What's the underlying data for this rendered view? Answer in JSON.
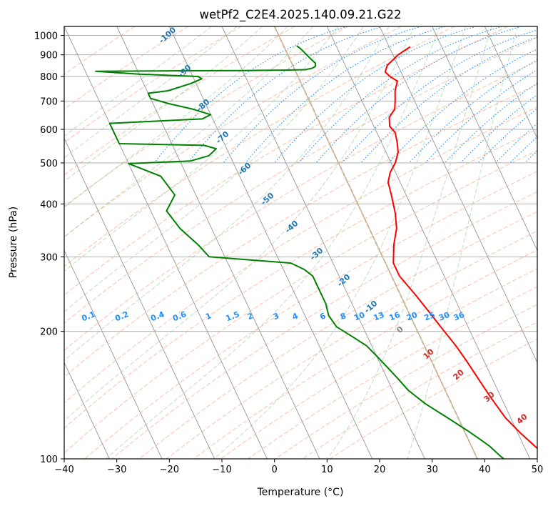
{
  "chart_data": {
    "type": "skew-t",
    "title": "wetPf2_C2E4.2025.140.09.21.G22",
    "xlabel": "Temperature (°C)",
    "ylabel": "Pressure (hPa)",
    "xlim": [
      -40,
      50
    ],
    "ylim": [
      1050,
      100
    ],
    "y_scale": "log",
    "x_ticks": [
      -40,
      -30,
      -20,
      -10,
      0,
      10,
      20,
      30,
      40,
      50
    ],
    "x_tick_labels": [
      "−40",
      "−30",
      "−20",
      "−10",
      "0",
      "10",
      "20",
      "30",
      "40",
      "50"
    ],
    "y_ticks": [
      100,
      200,
      300,
      400,
      500,
      600,
      700,
      800,
      900,
      1000
    ],
    "grid": true,
    "colors": {
      "temperature": "#ff0000",
      "dewpoint": "#008000",
      "isotherms": "#a0a0a0",
      "dry_adiabats": "#ff7f50",
      "moist_adiabats": "#7fbf7f",
      "mixing_ratio": "#1f8fff",
      "isotherm_labels": "#1f77b4",
      "dry_adiabat_labels": "#d62728",
      "zero_isotherm": "#d2b48c"
    },
    "series": [
      {
        "name": "Temperature",
        "points": [
          [
            24,
            940
          ],
          [
            21,
            900
          ],
          [
            18,
            850
          ],
          [
            17,
            820
          ],
          [
            17.5,
            800
          ],
          [
            18.5,
            780
          ],
          [
            17.2,
            740
          ],
          [
            16.3,
            700
          ],
          [
            15.5,
            670
          ],
          [
            13.7,
            640
          ],
          [
            13,
            610
          ],
          [
            13.5,
            590
          ],
          [
            13,
            560
          ],
          [
            12.3,
            530
          ],
          [
            10.8,
            500
          ],
          [
            9,
            475
          ],
          [
            7.7,
            450
          ],
          [
            7.2,
            420
          ],
          [
            6.3,
            380
          ],
          [
            5.2,
            350
          ],
          [
            3.2,
            320
          ],
          [
            1.5,
            290
          ],
          [
            1.5,
            270
          ],
          [
            2.8,
            245
          ],
          [
            3.8,
            225
          ],
          [
            4.8,
            205
          ],
          [
            6,
            185
          ],
          [
            6.7,
            170
          ],
          [
            7.3,
            155
          ],
          [
            8,
            140
          ],
          [
            9,
            125
          ],
          [
            10.5,
            115
          ],
          [
            12.5,
            105
          ],
          [
            14.5,
            100
          ]
        ]
      },
      {
        "name": "Dewpoint",
        "points": [
          [
            2.5,
            945
          ],
          [
            3,
            930
          ],
          [
            3.5,
            905
          ],
          [
            4,
            880
          ],
          [
            4.5,
            860
          ],
          [
            4.2,
            845
          ],
          [
            3.5,
            837
          ],
          [
            2,
            830
          ],
          [
            -2,
            828
          ],
          [
            -10,
            826
          ],
          [
            -23,
            825
          ],
          [
            -38,
            823
          ],
          [
            -30,
            810
          ],
          [
            -19,
            800
          ],
          [
            -18.5,
            790
          ],
          [
            -21,
            770
          ],
          [
            -26,
            740
          ],
          [
            -30,
            730
          ],
          [
            -30,
            710
          ],
          [
            -27,
            690
          ],
          [
            -23,
            670
          ],
          [
            -20,
            650
          ],
          [
            -22,
            635
          ],
          [
            -40,
            620
          ],
          [
            -40,
            555
          ],
          [
            -24,
            550
          ],
          [
            -22,
            540
          ],
          [
            -24,
            520
          ],
          [
            -28,
            505
          ],
          [
            -40,
            498
          ],
          [
            -35,
            465
          ],
          [
            -34,
            420
          ],
          [
            -37,
            385
          ],
          [
            -36,
            350
          ],
          [
            -34,
            320
          ],
          [
            -33,
            300
          ],
          [
            -18,
            290
          ],
          [
            -16,
            280
          ],
          [
            -15,
            270
          ],
          [
            -15,
            250
          ],
          [
            -15,
            232
          ],
          [
            -15.5,
            218
          ],
          [
            -15,
            205
          ],
          [
            -13,
            195
          ],
          [
            -11,
            185
          ],
          [
            -10,
            175
          ],
          [
            -9,
            165
          ],
          [
            -8,
            155
          ],
          [
            -7,
            145
          ],
          [
            -5,
            135
          ],
          [
            -2,
            125
          ],
          [
            0.5,
            117
          ],
          [
            2,
            112
          ],
          [
            3.5,
            107
          ],
          [
            4.5,
            102
          ],
          [
            5,
            100
          ]
        ]
      }
    ],
    "isotherm_labels": [
      "-100",
      "-90",
      "-80",
      "-70",
      "-60",
      "-50",
      "-40",
      "-30",
      "-20",
      "-10"
    ],
    "mixing_ratio_labels": [
      "0.1",
      "0.2",
      "0.4",
      "0.6",
      "1",
      "1.5",
      "2",
      "3",
      "4",
      "6",
      "8",
      "10",
      "13",
      "16",
      "20",
      "25",
      "30",
      "36"
    ],
    "dry_adiabat_labels": [
      "0",
      "10",
      "20",
      "30",
      "40"
    ]
  }
}
